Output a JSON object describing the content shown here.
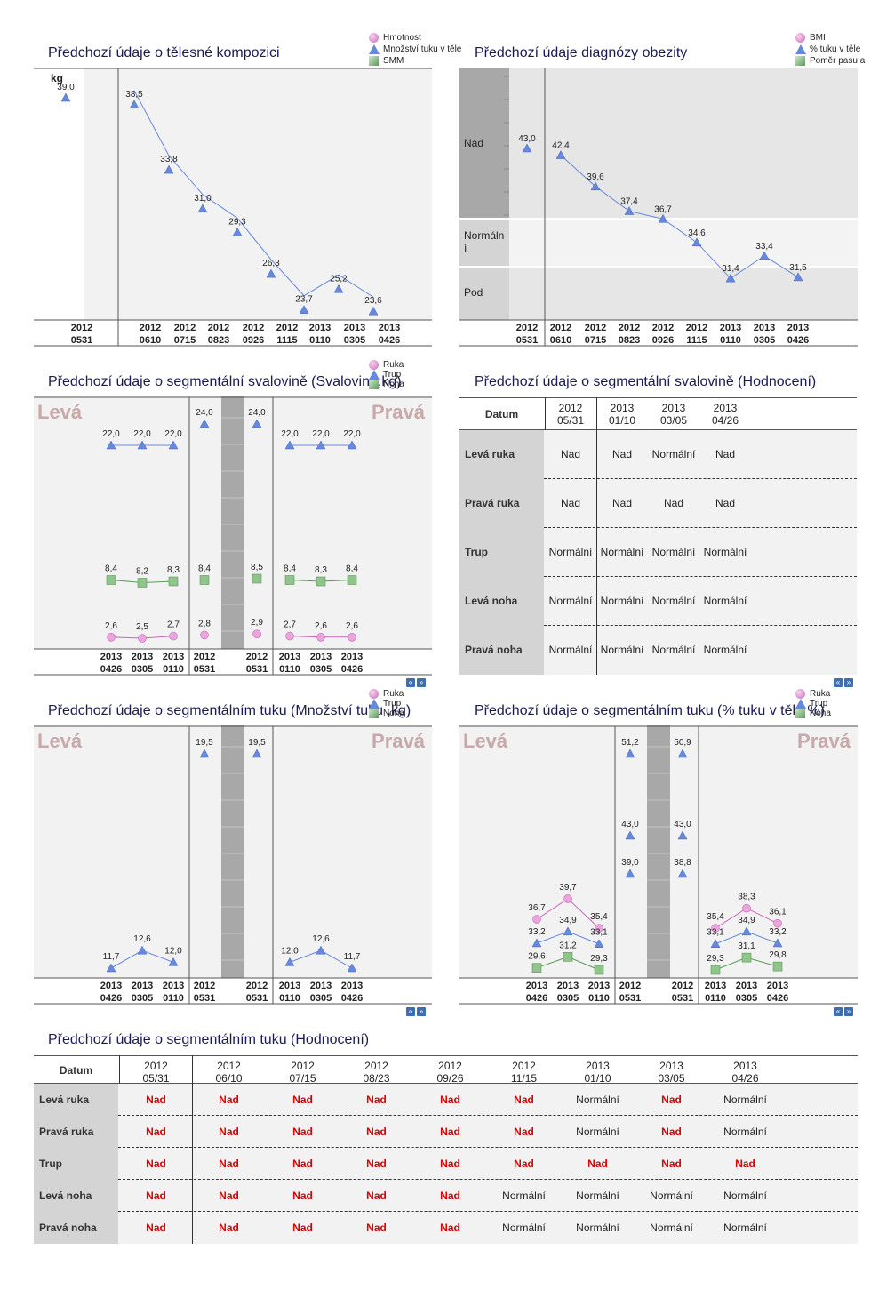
{
  "panel1": {
    "title": "Předchozí údaje o tělesné kompozici",
    "unit": "kg",
    "legend": [
      "Hmotnost",
      "Množství tuku v těle",
      "SMM"
    ],
    "dates": [
      "2012\n0531",
      "2012\n0610",
      "2012\n0715",
      "2012\n0823",
      "2012\n0926",
      "2012\n1115",
      "2013\n0110",
      "2013\n0305",
      "2013\n0426"
    ],
    "values": [
      "39,0",
      "38,5",
      "33,8",
      "31,0",
      "29,3",
      "26,3",
      "23,7",
      "25,2",
      "23,6"
    ]
  },
  "panel2": {
    "title": "Předchozí údaje diagnózy obezity",
    "legend": [
      "BMI",
      "% tuku v těle",
      "Poměr pasu a"
    ],
    "bands": [
      "Nad",
      "Normální",
      "Pod"
    ],
    "dates": [
      "2012\n0531",
      "2012\n0610",
      "2012\n0715",
      "2012\n0823",
      "2012\n0926",
      "2012\n1115",
      "2013\n0110",
      "2013\n0305",
      "2013\n0426"
    ],
    "values": [
      "43,0",
      "42,4",
      "39,6",
      "37,4",
      "36,7",
      "34,6",
      "31,4",
      "33,4",
      "31,5"
    ]
  },
  "panel3": {
    "title": "Předchozí údaje o segmentální svalovině (Svalovina,kg)",
    "legend": [
      "Ruka",
      "Trup",
      "Noha"
    ],
    "left_label": "Levá",
    "right_label": "Pravá",
    "left_dates": [
      "2013\n0426",
      "2013\n0305",
      "2013\n0110"
    ],
    "mid_left_date": "2012\n0531",
    "mid_right_date": "2012\n0531",
    "right_dates": [
      "2013\n0110",
      "2013\n0305",
      "2013\n0426"
    ],
    "left_trup": [
      "22,0",
      "22,0",
      "22,0"
    ],
    "left_noha": [
      "8,4",
      "8,2",
      "8,3"
    ],
    "left_ruka": [
      "2,6",
      "2,5",
      "2,7"
    ],
    "mid_left": [
      "24,0",
      "8,4",
      "2,8"
    ],
    "mid_right": [
      "24,0",
      "8,5",
      "2,9"
    ],
    "right_trup": [
      "22,0",
      "22,0",
      "22,0"
    ],
    "right_noha": [
      "8,4",
      "8,3",
      "8,4"
    ],
    "right_ruka": [
      "2,7",
      "2,6",
      "2,6"
    ]
  },
  "panel4": {
    "title": "Předchozí údaje o segmentální svalovině (Hodnocení)",
    "header": "Datum",
    "dates": [
      "2012\n05/31",
      "2013\n01/10",
      "2013\n03/05",
      "2013\n04/26"
    ],
    "rows": [
      {
        "label": "Levá ruka",
        "values": [
          "Nad",
          "Nad",
          "Normální",
          "Nad"
        ]
      },
      {
        "label": "Pravá ruka",
        "values": [
          "Nad",
          "Nad",
          "Nad",
          "Nad"
        ]
      },
      {
        "label": "Trup",
        "values": [
          "Normální",
          "Normální",
          "Normální",
          "Normální"
        ]
      },
      {
        "label": "Levá noha",
        "values": [
          "Normální",
          "Normální",
          "Normální",
          "Normální"
        ]
      },
      {
        "label": "Pravá noha",
        "values": [
          "Normální",
          "Normální",
          "Normální",
          "Normální"
        ]
      }
    ]
  },
  "panel5": {
    "title": "Předchozí údaje o segmentálním tuku (Množství tuku ,kg)",
    "legend": [
      "Ruka",
      "Trup",
      "Noha"
    ],
    "left_label": "Levá",
    "right_label": "Pravá",
    "left_dates": [
      "2013\n0426",
      "2013\n0305",
      "2013\n0110"
    ],
    "mid_left_date": "2012\n0531",
    "mid_right_date": "2012\n0531",
    "right_dates": [
      "2013\n0110",
      "2013\n0305",
      "2013\n0426"
    ],
    "left_values": [
      "11,7",
      "12,6",
      "12,0"
    ],
    "mid_left": "19,5",
    "mid_right": "19,5",
    "right_values": [
      "12,0",
      "12,6",
      "11,7"
    ]
  },
  "panel6": {
    "title": "Předchozí údaje o segmentálním tuku (% tuku v těle %)",
    "legend": [
      "Ruka",
      "Trup",
      "Noha"
    ],
    "left_label": "Levá",
    "right_label": "Pravá",
    "left_dates": [
      "2013\n0426",
      "2013\n0305",
      "2013\n0110"
    ],
    "mid_left_date": "2012\n0531",
    "mid_right_date": "2012\n0531",
    "right_dates": [
      "2013\n0110",
      "2013\n0305",
      "2013\n0426"
    ],
    "left_ruka": [
      "36,7",
      "39,7",
      "35,4"
    ],
    "left_trup": [
      "33,2",
      "34,9",
      "33,1"
    ],
    "left_noha": [
      "29,6",
      "31,2",
      "29,3"
    ],
    "mid_left": [
      "51,2",
      "43,0",
      "39,0"
    ],
    "mid_right": [
      "50,9",
      "43,0",
      "38,8"
    ],
    "right_ruka": [
      "35,4",
      "38,3",
      "36,1"
    ],
    "right_trup": [
      "33,1",
      "34,9",
      "33,2"
    ],
    "right_noha": [
      "29,3",
      "31,1",
      "29,8"
    ]
  },
  "panel7": {
    "title": "Předchozí údaje o segmentálním tuku (Hodnocení)",
    "header": "Datum",
    "dates": [
      "2012\n05/31",
      "2012\n06/10",
      "2012\n07/15",
      "2012\n08/23",
      "2012\n09/26",
      "2012\n11/15",
      "2013\n01/10",
      "2013\n03/05",
      "2013\n04/26"
    ],
    "rows": [
      {
        "label": "Levá ruka",
        "values": [
          "Nad",
          "Nad",
          "Nad",
          "Nad",
          "Nad",
          "Nad",
          "Normální",
          "Nad",
          "Normální"
        ]
      },
      {
        "label": "Pravá ruka",
        "values": [
          "Nad",
          "Nad",
          "Nad",
          "Nad",
          "Nad",
          "Nad",
          "Normální",
          "Nad",
          "Normální"
        ]
      },
      {
        "label": "Trup",
        "values": [
          "Nad",
          "Nad",
          "Nad",
          "Nad",
          "Nad",
          "Nad",
          "Nad",
          "Nad",
          "Nad"
        ]
      },
      {
        "label": "Levá noha",
        "values": [
          "Nad",
          "Nad",
          "Nad",
          "Nad",
          "Nad",
          "Normální",
          "Normální",
          "Normální",
          "Normální"
        ]
      },
      {
        "label": "Pravá noha",
        "values": [
          "Nad",
          "Nad",
          "Nad",
          "Nad",
          "Nad",
          "Normální",
          "Normální",
          "Normální",
          "Normální"
        ]
      }
    ]
  },
  "colors": {
    "title": "#1a1a55",
    "series_trup": "#6688dd",
    "series_ruka": "#cc66bb",
    "series_noha": "#5a9a55",
    "nad_red": "#dd0000",
    "side_label": "#c8a8a8"
  }
}
